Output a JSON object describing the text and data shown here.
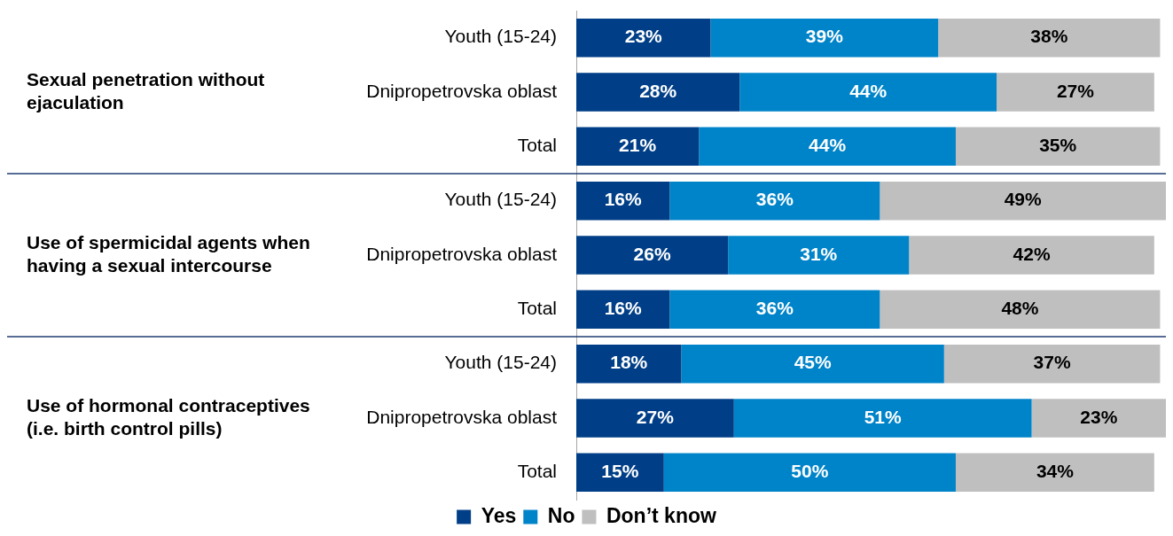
{
  "chart_data": {
    "type": "bar",
    "orientation": "horizontal",
    "stacked": true,
    "legend": "bottom",
    "tick_labels": "y",
    "categories": [
      "Youth (15-24)",
      "Dnipropetrovska oblast",
      "Total",
      "Youth (15-24)",
      "Dnipropetrovska oblast",
      "Total",
      "Youth (15-24)",
      "Dnipropetrovska oblast",
      "Total"
    ],
    "annotations": [
      "Sexual penetration without ejaculation",
      "Use of spermicidal agents when having a sexual intercourse",
      "Use of hormonal contraceptives (i.e. birth control pills)"
    ],
    "series": [
      {
        "name": "Yes",
        "color": "#003f87",
        "values": [
          23,
          28,
          21,
          16,
          26,
          16,
          18,
          27,
          15
        ],
        "value_labels": [
          "23%",
          "28%",
          "21%",
          "16%",
          "26%",
          "16%",
          "18%",
          "27%",
          "15%"
        ]
      },
      {
        "name": "No",
        "color": "#0084c9",
        "values": [
          39,
          44,
          44,
          36,
          31,
          36,
          45,
          51,
          50
        ],
        "value_labels": [
          "39%",
          "44%",
          "44%",
          "36%",
          "31%",
          "36%",
          "45%",
          "51%",
          "50%"
        ]
      },
      {
        "name": "Don’t know",
        "color": "#bfbfbf",
        "values": [
          38,
          27,
          35,
          49,
          42,
          48,
          37,
          23,
          34
        ],
        "value_labels": [
          "38%",
          "27%",
          "35%",
          "49%",
          "42%",
          "48%",
          "37%",
          "23%",
          "34%"
        ]
      }
    ]
  }
}
